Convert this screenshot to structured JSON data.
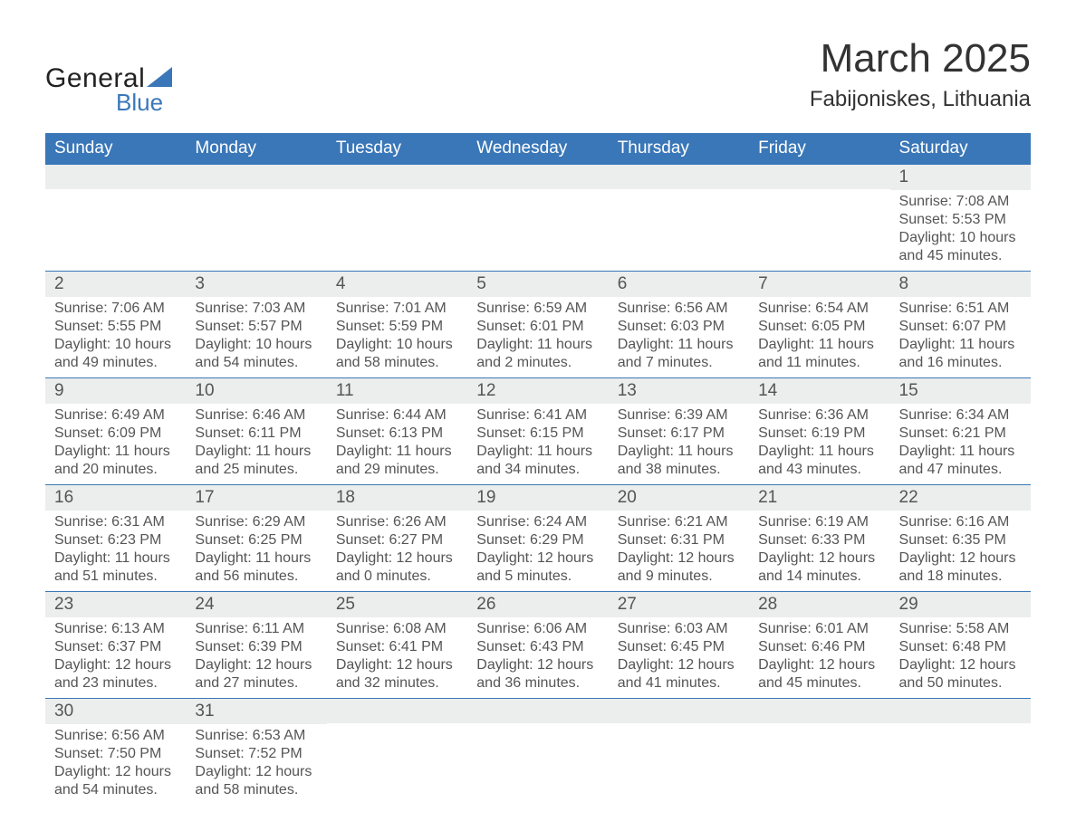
{
  "brand": {
    "word1": "General",
    "word2": "Blue",
    "triangle_color": "#3a77b8"
  },
  "title": "March 2025",
  "subtitle": "Fabijoniskes, Lithuania",
  "colors": {
    "header_bg": "#3a77b8",
    "header_text": "#ffffff",
    "daynum_bg": "#eceded",
    "text": "#555555",
    "border": "#3a77b8"
  },
  "day_headers": [
    "Sunday",
    "Monday",
    "Tuesday",
    "Wednesday",
    "Thursday",
    "Friday",
    "Saturday"
  ],
  "weeks": [
    [
      {
        "day": "",
        "lines": []
      },
      {
        "day": "",
        "lines": []
      },
      {
        "day": "",
        "lines": []
      },
      {
        "day": "",
        "lines": []
      },
      {
        "day": "",
        "lines": []
      },
      {
        "day": "",
        "lines": []
      },
      {
        "day": "1",
        "lines": [
          "Sunrise: 7:08 AM",
          "Sunset: 5:53 PM",
          "Daylight: 10 hours",
          "and 45 minutes."
        ]
      }
    ],
    [
      {
        "day": "2",
        "lines": [
          "Sunrise: 7:06 AM",
          "Sunset: 5:55 PM",
          "Daylight: 10 hours",
          "and 49 minutes."
        ]
      },
      {
        "day": "3",
        "lines": [
          "Sunrise: 7:03 AM",
          "Sunset: 5:57 PM",
          "Daylight: 10 hours",
          "and 54 minutes."
        ]
      },
      {
        "day": "4",
        "lines": [
          "Sunrise: 7:01 AM",
          "Sunset: 5:59 PM",
          "Daylight: 10 hours",
          "and 58 minutes."
        ]
      },
      {
        "day": "5",
        "lines": [
          "Sunrise: 6:59 AM",
          "Sunset: 6:01 PM",
          "Daylight: 11 hours",
          "and 2 minutes."
        ]
      },
      {
        "day": "6",
        "lines": [
          "Sunrise: 6:56 AM",
          "Sunset: 6:03 PM",
          "Daylight: 11 hours",
          "and 7 minutes."
        ]
      },
      {
        "day": "7",
        "lines": [
          "Sunrise: 6:54 AM",
          "Sunset: 6:05 PM",
          "Daylight: 11 hours",
          "and 11 minutes."
        ]
      },
      {
        "day": "8",
        "lines": [
          "Sunrise: 6:51 AM",
          "Sunset: 6:07 PM",
          "Daylight: 11 hours",
          "and 16 minutes."
        ]
      }
    ],
    [
      {
        "day": "9",
        "lines": [
          "Sunrise: 6:49 AM",
          "Sunset: 6:09 PM",
          "Daylight: 11 hours",
          "and 20 minutes."
        ]
      },
      {
        "day": "10",
        "lines": [
          "Sunrise: 6:46 AM",
          "Sunset: 6:11 PM",
          "Daylight: 11 hours",
          "and 25 minutes."
        ]
      },
      {
        "day": "11",
        "lines": [
          "Sunrise: 6:44 AM",
          "Sunset: 6:13 PM",
          "Daylight: 11 hours",
          "and 29 minutes."
        ]
      },
      {
        "day": "12",
        "lines": [
          "Sunrise: 6:41 AM",
          "Sunset: 6:15 PM",
          "Daylight: 11 hours",
          "and 34 minutes."
        ]
      },
      {
        "day": "13",
        "lines": [
          "Sunrise: 6:39 AM",
          "Sunset: 6:17 PM",
          "Daylight: 11 hours",
          "and 38 minutes."
        ]
      },
      {
        "day": "14",
        "lines": [
          "Sunrise: 6:36 AM",
          "Sunset: 6:19 PM",
          "Daylight: 11 hours",
          "and 43 minutes."
        ]
      },
      {
        "day": "15",
        "lines": [
          "Sunrise: 6:34 AM",
          "Sunset: 6:21 PM",
          "Daylight: 11 hours",
          "and 47 minutes."
        ]
      }
    ],
    [
      {
        "day": "16",
        "lines": [
          "Sunrise: 6:31 AM",
          "Sunset: 6:23 PM",
          "Daylight: 11 hours",
          "and 51 minutes."
        ]
      },
      {
        "day": "17",
        "lines": [
          "Sunrise: 6:29 AM",
          "Sunset: 6:25 PM",
          "Daylight: 11 hours",
          "and 56 minutes."
        ]
      },
      {
        "day": "18",
        "lines": [
          "Sunrise: 6:26 AM",
          "Sunset: 6:27 PM",
          "Daylight: 12 hours",
          "and 0 minutes."
        ]
      },
      {
        "day": "19",
        "lines": [
          "Sunrise: 6:24 AM",
          "Sunset: 6:29 PM",
          "Daylight: 12 hours",
          "and 5 minutes."
        ]
      },
      {
        "day": "20",
        "lines": [
          "Sunrise: 6:21 AM",
          "Sunset: 6:31 PM",
          "Daylight: 12 hours",
          "and 9 minutes."
        ]
      },
      {
        "day": "21",
        "lines": [
          "Sunrise: 6:19 AM",
          "Sunset: 6:33 PM",
          "Daylight: 12 hours",
          "and 14 minutes."
        ]
      },
      {
        "day": "22",
        "lines": [
          "Sunrise: 6:16 AM",
          "Sunset: 6:35 PM",
          "Daylight: 12 hours",
          "and 18 minutes."
        ]
      }
    ],
    [
      {
        "day": "23",
        "lines": [
          "Sunrise: 6:13 AM",
          "Sunset: 6:37 PM",
          "Daylight: 12 hours",
          "and 23 minutes."
        ]
      },
      {
        "day": "24",
        "lines": [
          "Sunrise: 6:11 AM",
          "Sunset: 6:39 PM",
          "Daylight: 12 hours",
          "and 27 minutes."
        ]
      },
      {
        "day": "25",
        "lines": [
          "Sunrise: 6:08 AM",
          "Sunset: 6:41 PM",
          "Daylight: 12 hours",
          "and 32 minutes."
        ]
      },
      {
        "day": "26",
        "lines": [
          "Sunrise: 6:06 AM",
          "Sunset: 6:43 PM",
          "Daylight: 12 hours",
          "and 36 minutes."
        ]
      },
      {
        "day": "27",
        "lines": [
          "Sunrise: 6:03 AM",
          "Sunset: 6:45 PM",
          "Daylight: 12 hours",
          "and 41 minutes."
        ]
      },
      {
        "day": "28",
        "lines": [
          "Sunrise: 6:01 AM",
          "Sunset: 6:46 PM",
          "Daylight: 12 hours",
          "and 45 minutes."
        ]
      },
      {
        "day": "29",
        "lines": [
          "Sunrise: 5:58 AM",
          "Sunset: 6:48 PM",
          "Daylight: 12 hours",
          "and 50 minutes."
        ]
      }
    ],
    [
      {
        "day": "30",
        "lines": [
          "Sunrise: 6:56 AM",
          "Sunset: 7:50 PM",
          "Daylight: 12 hours",
          "and 54 minutes."
        ]
      },
      {
        "day": "31",
        "lines": [
          "Sunrise: 6:53 AM",
          "Sunset: 7:52 PM",
          "Daylight: 12 hours",
          "and 58 minutes."
        ]
      },
      {
        "day": "",
        "lines": []
      },
      {
        "day": "",
        "lines": []
      },
      {
        "day": "",
        "lines": []
      },
      {
        "day": "",
        "lines": []
      },
      {
        "day": "",
        "lines": []
      }
    ]
  ]
}
